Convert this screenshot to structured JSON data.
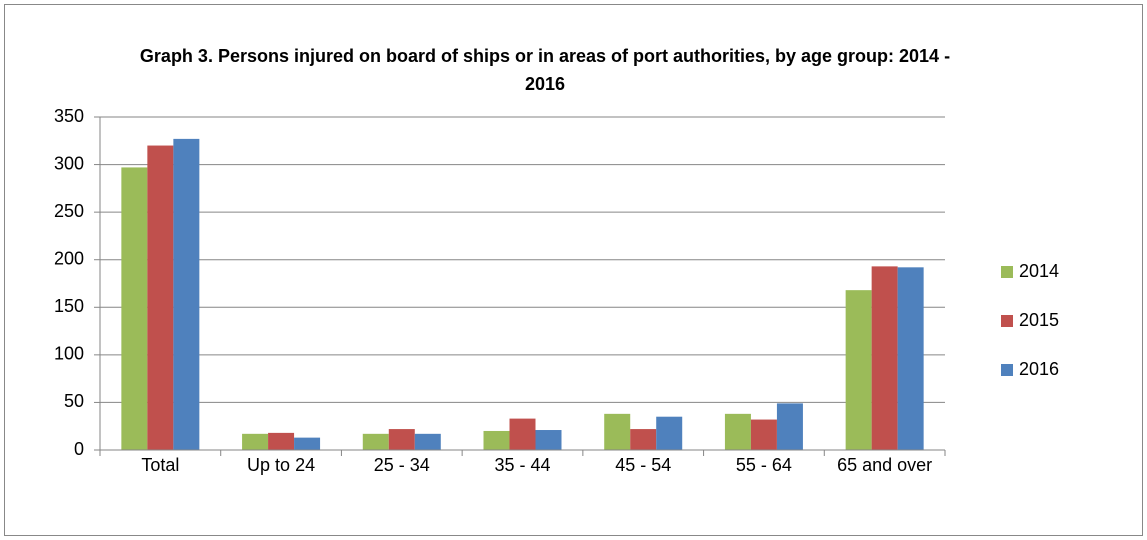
{
  "chart_data": {
    "type": "bar",
    "title": "Graph 3. Persons injured on board of ships or in areas of port authorities, by age group: 2014 - 2016",
    "categories": [
      "Total",
      "Up to 24",
      "25 - 34",
      "35 - 44",
      "45 - 54",
      "55 - 64",
      "65 and over"
    ],
    "series": [
      {
        "name": "2014",
        "color": "#9bbb59",
        "values": [
          297,
          17,
          17,
          20,
          38,
          38,
          168
        ]
      },
      {
        "name": "2015",
        "color": "#c0504d",
        "values": [
          320,
          18,
          22,
          33,
          22,
          32,
          193
        ]
      },
      {
        "name": "2016",
        "color": "#4f81bd",
        "values": [
          327,
          13,
          17,
          21,
          35,
          49,
          192
        ]
      }
    ],
    "ylim": [
      0,
      350
    ],
    "yticks": [
      0,
      50,
      100,
      150,
      200,
      250,
      300,
      350
    ],
    "grid": true,
    "legend": "right"
  }
}
